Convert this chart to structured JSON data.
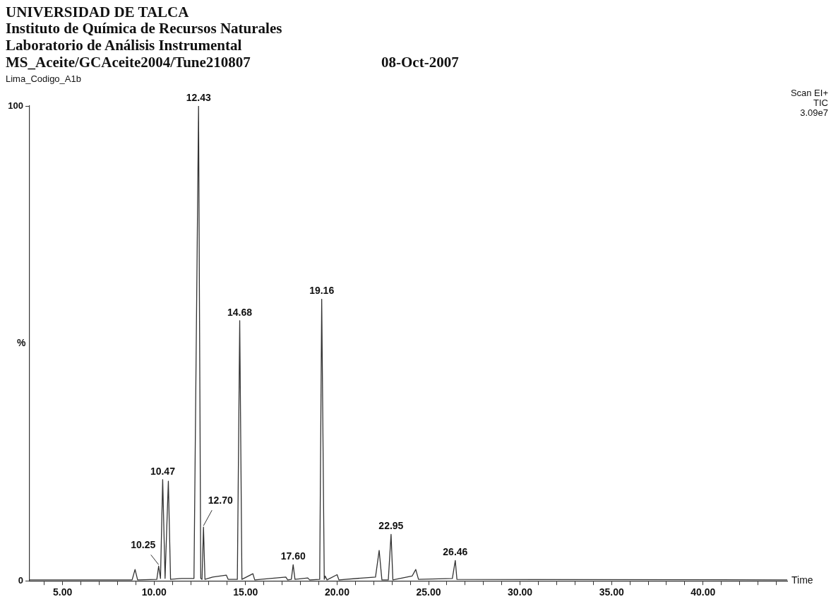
{
  "chart_data": {
    "type": "line",
    "title": "UNIVERSIDAD DE TALCA",
    "subtitle": "Instituto de Química de Recursos Naturales",
    "annotations": [
      "Laboratorio de Análisis Instrumental",
      "MS_Aceite/GCAceite2004/Tune210807",
      "08-Oct-2007",
      "Lima_Codigo_A1b",
      "Scan EI+",
      "TIC",
      "3.09e7",
      {
        "text": "10.25",
        "x": 10.25,
        "y": 3.1
      },
      {
        "text": "10.47",
        "x": 10.47,
        "y": 21.3
      },
      {
        "text": "12.43",
        "x": 12.43,
        "y": 100
      },
      {
        "text": "12.70",
        "x": 12.7,
        "y": 11.3
      },
      {
        "text": "14.68",
        "x": 14.68,
        "y": 54.8
      },
      {
        "text": "17.60",
        "x": 17.6,
        "y": 3.4
      },
      {
        "text": "19.16",
        "x": 19.16,
        "y": 59.3
      },
      {
        "text": "22.95",
        "x": 22.95,
        "y": 9.8
      },
      {
        "text": "26.46",
        "x": 26.46,
        "y": 4.3
      }
    ],
    "xlabel": "Time",
    "ylabel": "%",
    "x": [
      3.2,
      8.8,
      8.96,
      9.1,
      10.15,
      10.25,
      10.35,
      10.47,
      10.6,
      10.78,
      10.9,
      11.5,
      12.18,
      12.43,
      12.55,
      12.62,
      12.7,
      12.78,
      13.2,
      13.95,
      14.05,
      14.55,
      14.68,
      14.8,
      15.4,
      15.5,
      17.2,
      17.3,
      17.5,
      17.6,
      17.7,
      18.4,
      18.5,
      19.05,
      19.16,
      19.3,
      19.35,
      19.45,
      20.0,
      20.1,
      22.1,
      22.3,
      22.45,
      22.8,
      22.95,
      23.05,
      24.1,
      24.3,
      24.45,
      26.3,
      26.46,
      26.55,
      44.6
    ],
    "series": [
      {
        "color": "#333333",
        "values": [
          0.2,
          0.2,
          2.4,
          0.2,
          0.3,
          3.1,
          0.5,
          21.3,
          0.5,
          21,
          0.3,
          0.5,
          0.5,
          100,
          0.5,
          0.3,
          11.3,
          0.3,
          0.8,
          1.2,
          0.3,
          0.3,
          54.8,
          0.3,
          1.5,
          0.2,
          0.8,
          0.2,
          0.3,
          3.4,
          0.3,
          0.6,
          0.2,
          0.3,
          59.3,
          0.3,
          1,
          0.2,
          1.3,
          0.2,
          0.8,
          6.4,
          0.2,
          0.2,
          9.8,
          0.2,
          1,
          2.4,
          0.3,
          0.5,
          4.3,
          0.3,
          0.2
        ]
      }
    ],
    "xlim": [
      3.2,
      44.6
    ],
    "xticks": [
      {
        "value": 4,
        "label": null
      },
      {
        "value": 5,
        "label": "5.00"
      },
      {
        "value": 6,
        "label": null
      },
      {
        "value": 7,
        "label": null
      },
      {
        "value": 8,
        "label": null
      },
      {
        "value": 9,
        "label": null
      },
      {
        "value": 10,
        "label": "10.00"
      },
      {
        "value": 11,
        "label": null
      },
      {
        "value": 12,
        "label": null
      },
      {
        "value": 13,
        "label": null
      },
      {
        "value": 14,
        "label": null
      },
      {
        "value": 15,
        "label": "15.00"
      },
      {
        "value": 16,
        "label": null
      },
      {
        "value": 17,
        "label": null
      },
      {
        "value": 18,
        "label": null
      },
      {
        "value": 19,
        "label": null
      },
      {
        "value": 20,
        "label": "20.00"
      },
      {
        "value": 21,
        "label": null
      },
      {
        "value": 22,
        "label": null
      },
      {
        "value": 23,
        "label": null
      },
      {
        "value": 24,
        "label": null
      },
      {
        "value": 25,
        "label": "25.00"
      },
      {
        "value": 26,
        "label": null
      },
      {
        "value": 27,
        "label": null
      },
      {
        "value": 28,
        "label": null
      },
      {
        "value": 29,
        "label": null
      },
      {
        "value": 30,
        "label": "30.00"
      },
      {
        "value": 31,
        "label": null
      },
      {
        "value": 32,
        "label": null
      },
      {
        "value": 33,
        "label": null
      },
      {
        "value": 34,
        "label": null
      },
      {
        "value": 35,
        "label": "35.00"
      },
      {
        "value": 36,
        "label": null
      },
      {
        "value": 37,
        "label": null
      },
      {
        "value": 38,
        "label": null
      },
      {
        "value": 39,
        "label": null
      },
      {
        "value": 40,
        "label": "40.00"
      },
      {
        "value": 41,
        "label": null
      },
      {
        "value": 42,
        "label": null
      },
      {
        "value": 43,
        "label": null
      },
      {
        "value": 44,
        "label": null
      }
    ],
    "ylim": [
      0,
      100
    ],
    "yticks": [
      0,
      100
    ],
    "grid": false,
    "legend": false,
    "marker": "none",
    "line_style": "solid"
  }
}
